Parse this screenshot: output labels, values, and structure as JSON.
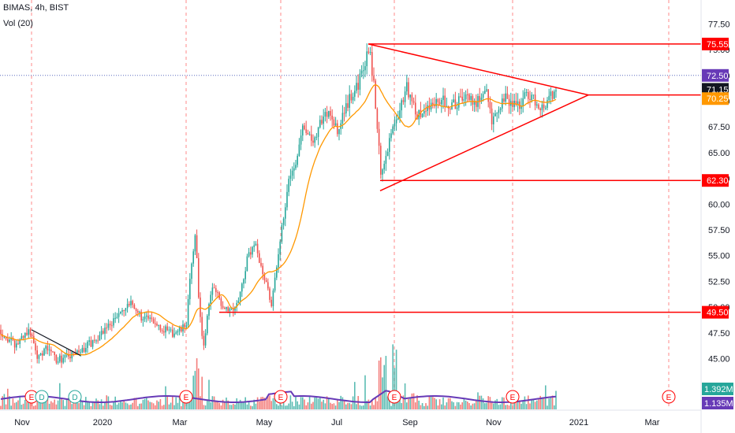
{
  "header": {
    "symbol_line": "BIMAS, 4h, BIST",
    "indicator_line": "Vol (20)"
  },
  "colors": {
    "background": "#ffffff",
    "up": "#26a69a",
    "down": "#ef5350",
    "ma": "#ff9800",
    "vol_ma": "#673ab7",
    "pattern": "#ff0000",
    "grid_vertical": "#ff6b6b",
    "axis_text": "#131722"
  },
  "chart_data": {
    "type": "candlestick",
    "symbol": "BIMAS",
    "timeframe": "4h",
    "exchange": "BIST",
    "x_tick_labels": [
      "Nov",
      "2020",
      "Mar",
      "May",
      "Jul",
      "Sep",
      "Nov",
      "2021",
      "Mar"
    ],
    "y_ticks": [
      45,
      47.5,
      50,
      52.5,
      55,
      57.5,
      60,
      62.5,
      65,
      67.5,
      70,
      72.5,
      75,
      77.5
    ],
    "y_tick_labels": [
      "45.00",
      "47.50",
      "50.00",
      "52.50",
      "55.00",
      "57.50",
      "60.00",
      "62.50",
      "65.00",
      "67.50",
      "70.00",
      "72.50",
      "75.00",
      "77.50"
    ],
    "ylim": [
      43.3,
      79.8
    ],
    "grid": "vertical dashed",
    "price_path": [
      {
        "t": 0,
        "p": 47.8
      },
      {
        "t": 8,
        "p": 47.0
      },
      {
        "t": 20,
        "p": 46.2
      },
      {
        "t": 30,
        "p": 47.4
      },
      {
        "t": 40,
        "p": 47.6
      },
      {
        "t": 46,
        "p": 45.3
      },
      {
        "t": 60,
        "p": 46.0
      },
      {
        "t": 72,
        "p": 44.9
      },
      {
        "t": 88,
        "p": 45.2
      },
      {
        "t": 100,
        "p": 45.6
      },
      {
        "t": 120,
        "p": 46.8
      },
      {
        "t": 140,
        "p": 48.4
      },
      {
        "t": 155,
        "p": 49.6
      },
      {
        "t": 168,
        "p": 50.3
      },
      {
        "t": 180,
        "p": 49.0
      },
      {
        "t": 200,
        "p": 48.4
      },
      {
        "t": 215,
        "p": 47.4
      },
      {
        "t": 228,
        "p": 47.7
      },
      {
        "t": 236,
        "p": 48.2
      },
      {
        "t": 240,
        "p": 52.0
      },
      {
        "t": 248,
        "p": 57.0
      },
      {
        "t": 252,
        "p": 50.5
      },
      {
        "t": 258,
        "p": 45.6
      },
      {
        "t": 264,
        "p": 50.2
      },
      {
        "t": 270,
        "p": 52.0
      },
      {
        "t": 282,
        "p": 50.2
      },
      {
        "t": 295,
        "p": 49.8
      },
      {
        "t": 305,
        "p": 51.3
      },
      {
        "t": 315,
        "p": 55.3
      },
      {
        "t": 325,
        "p": 55.8
      },
      {
        "t": 333,
        "p": 53.5
      },
      {
        "t": 338,
        "p": 52.2
      },
      {
        "t": 344,
        "p": 50.3
      },
      {
        "t": 350,
        "p": 53.2
      },
      {
        "t": 358,
        "p": 58.0
      },
      {
        "t": 365,
        "p": 62.2
      },
      {
        "t": 375,
        "p": 64.2
      },
      {
        "t": 385,
        "p": 68.0
      },
      {
        "t": 395,
        "p": 65.8
      },
      {
        "t": 405,
        "p": 67.8
      },
      {
        "t": 418,
        "p": 69.2
      },
      {
        "t": 428,
        "p": 66.8
      },
      {
        "t": 440,
        "p": 69.8
      },
      {
        "t": 452,
        "p": 71.2
      },
      {
        "t": 462,
        "p": 73.4
      },
      {
        "t": 468,
        "p": 75.3
      },
      {
        "t": 475,
        "p": 71.0
      },
      {
        "t": 480,
        "p": 66.0
      },
      {
        "t": 483,
        "p": 62.2
      },
      {
        "t": 488,
        "p": 64.0
      },
      {
        "t": 495,
        "p": 66.5
      },
      {
        "t": 505,
        "p": 68.5
      },
      {
        "t": 515,
        "p": 71.5
      },
      {
        "t": 530,
        "p": 68.5
      },
      {
        "t": 545,
        "p": 69.6
      },
      {
        "t": 560,
        "p": 70.2
      },
      {
        "t": 575,
        "p": 69.6
      },
      {
        "t": 590,
        "p": 70.6
      },
      {
        "t": 605,
        "p": 69.8
      },
      {
        "t": 615,
        "p": 71.6
      },
      {
        "t": 625,
        "p": 67.8
      },
      {
        "t": 640,
        "p": 70.2
      },
      {
        "t": 655,
        "p": 69.6
      },
      {
        "t": 670,
        "p": 70.6
      },
      {
        "t": 690,
        "p": 69.3
      },
      {
        "t": 700,
        "p": 70.6
      },
      {
        "t": 707,
        "p": 71.15
      }
    ],
    "ma_line_labels": [
      "70.25"
    ],
    "horizontal_levels": [
      {
        "label": "75.55",
        "value": 75.55
      },
      {
        "label": "70.60",
        "value": 70.6
      },
      {
        "label": "62.30",
        "value": 62.3
      },
      {
        "label": "49.50",
        "value": 49.5
      }
    ],
    "price_labels": [
      {
        "label": "72.50",
        "value": 72.5,
        "color": "#673ab7"
      },
      {
        "label": "71.15",
        "value": 71.15,
        "color": "#131722"
      },
      {
        "label": "70.25",
        "value": 70.25,
        "color": "#ff9800"
      }
    ],
    "triangle": {
      "apex_value": 70.6,
      "top_start_value": 75.55,
      "bottom_start_value": 61.3
    },
    "volume_labels": [
      "1.392M",
      "1.135M"
    ],
    "earnings_markers": [
      "E",
      "D",
      "D",
      "E",
      "E",
      "E",
      "E",
      "E"
    ],
    "volume_ma_start": 1.0
  }
}
